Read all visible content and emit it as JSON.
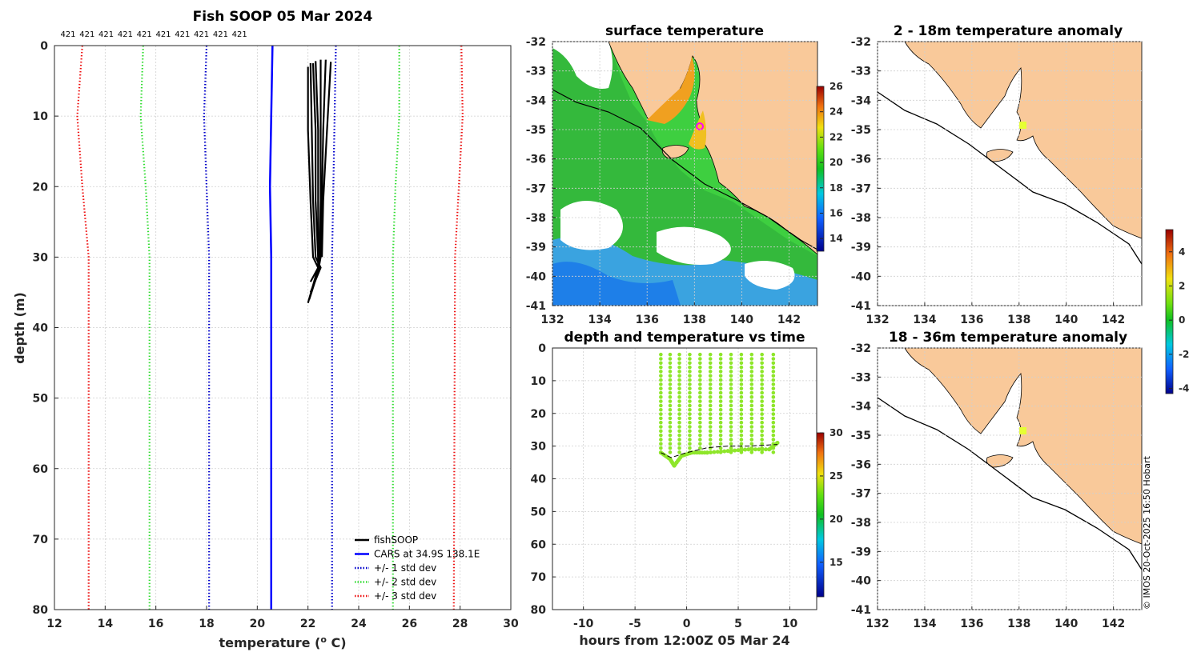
{
  "chart_data": [
    {
      "type": "line",
      "title": "Fish SOOP 05 Mar 2024",
      "xlabel": "temperature (",
      "xlabel_sup": "o",
      "xlabel_end": " C)",
      "ylabel": "depth (m)",
      "xlim": [
        12,
        30
      ],
      "ylim": [
        0,
        80
      ],
      "y_reversed": true,
      "xticks": [
        "12",
        "14",
        "16",
        "18",
        "20",
        "22",
        "24",
        "26",
        "28",
        "30"
      ],
      "yticks": [
        "0",
        "10",
        "20",
        "30",
        "40",
        "50",
        "60",
        "70",
        "80"
      ],
      "top_counts": [
        "421",
        "421",
        "421",
        "421",
        "421",
        "421",
        "421",
        "421",
        "421",
        "421"
      ],
      "legend": [
        {
          "label": "fishSOOP",
          "color": "#000000",
          "style": "solid"
        },
        {
          "label": "CARS at 34.9S 138.1E",
          "color": "#0000ff",
          "style": "solid"
        },
        {
          "label": "+/- 1 std dev",
          "color": "#0000cc",
          "style": "dotted"
        },
        {
          "label": "+/- 2 std dev",
          "color": "#33dd33",
          "style": "dotted"
        },
        {
          "label": "+/- 3 std dev",
          "color": "#ee1111",
          "style": "dotted"
        }
      ],
      "series": [
        {
          "name": "CARS",
          "color": "#0000ff",
          "style": "solid",
          "points": [
            [
              20.6,
              0
            ],
            [
              20.55,
              10
            ],
            [
              20.5,
              20
            ],
            [
              20.55,
              30
            ],
            [
              20.55,
              80
            ]
          ]
        },
        {
          "name": "-1 std",
          "color": "#0000cc",
          "style": "dotted",
          "points": [
            [
              18.0,
              0
            ],
            [
              17.9,
              10
            ],
            [
              18.0,
              20
            ],
            [
              18.1,
              30
            ],
            [
              18.1,
              80
            ]
          ]
        },
        {
          "name": "+1 std",
          "color": "#0000cc",
          "style": "dotted",
          "points": [
            [
              23.1,
              0
            ],
            [
              23.05,
              10
            ],
            [
              23.0,
              20
            ],
            [
              22.95,
              30
            ],
            [
              22.95,
              80
            ]
          ]
        },
        {
          "name": "-2 std",
          "color": "#33dd33",
          "style": "dotted",
          "points": [
            [
              15.5,
              0
            ],
            [
              15.4,
              10
            ],
            [
              15.6,
              20
            ],
            [
              15.75,
              30
            ],
            [
              15.75,
              80
            ]
          ]
        },
        {
          "name": "+2 std",
          "color": "#33dd33",
          "style": "dotted",
          "points": [
            [
              25.6,
              0
            ],
            [
              25.6,
              10
            ],
            [
              25.45,
              20
            ],
            [
              25.35,
              30
            ],
            [
              25.35,
              80
            ]
          ]
        },
        {
          "name": "-3 std",
          "color": "#ee1111",
          "style": "dotted",
          "points": [
            [
              13.1,
              0
            ],
            [
              12.9,
              10
            ],
            [
              13.1,
              20
            ],
            [
              13.35,
              30
            ],
            [
              13.35,
              80
            ]
          ]
        },
        {
          "name": "+3 std",
          "color": "#ee1111",
          "style": "dotted",
          "points": [
            [
              28.05,
              0
            ],
            [
              28.1,
              10
            ],
            [
              27.95,
              20
            ],
            [
              27.8,
              30
            ],
            [
              27.75,
              80
            ]
          ]
        }
      ],
      "profiles": [
        {
          "name": "fishSOOP cast",
          "points": [
            [
              22.0,
              3
            ],
            [
              22.0,
              12
            ],
            [
              22.1,
              22
            ],
            [
              22.2,
              30
            ],
            [
              22.4,
              31.5
            ],
            [
              22.1,
              33.5
            ]
          ]
        },
        {
          "name": "fishSOOP cast",
          "points": [
            [
              22.1,
              2.5
            ],
            [
              22.15,
              12
            ],
            [
              22.2,
              22
            ],
            [
              22.3,
              30
            ],
            [
              22.5,
              31.5
            ],
            [
              22.1,
              35
            ]
          ]
        },
        {
          "name": "fishSOOP cast",
          "points": [
            [
              22.2,
              2.5
            ],
            [
              22.3,
              12
            ],
            [
              22.3,
              22
            ],
            [
              22.4,
              30
            ],
            [
              22.45,
              31.5
            ],
            [
              22.05,
              36
            ]
          ]
        },
        {
          "name": "fishSOOP cast",
          "points": [
            [
              22.3,
              2.2
            ],
            [
              22.4,
              12
            ],
            [
              22.4,
              22
            ],
            [
              22.4,
              30
            ],
            [
              22.4,
              31.5
            ],
            [
              22.0,
              36.5
            ]
          ]
        },
        {
          "name": "fishSOOP cast",
          "points": [
            [
              22.5,
              2.0
            ],
            [
              22.5,
              12
            ],
            [
              22.5,
              22
            ],
            [
              22.45,
              30
            ],
            [
              22.4,
              31
            ]
          ]
        },
        {
          "name": "fishSOOP cast",
          "points": [
            [
              22.7,
              2.0
            ],
            [
              22.6,
              12
            ],
            [
              22.55,
              22
            ],
            [
              22.5,
              30
            ],
            [
              22.45,
              31
            ]
          ]
        },
        {
          "name": "fishSOOP cast",
          "points": [
            [
              22.9,
              2.3
            ],
            [
              22.75,
              12
            ],
            [
              22.6,
              22
            ],
            [
              22.55,
              30
            ]
          ]
        }
      ]
    },
    {
      "type": "heatmap",
      "title": "surface temperature",
      "xlim": [
        132,
        143.2
      ],
      "ylim": [
        -41,
        -32
      ],
      "xticks": [
        "132",
        "134",
        "136",
        "138",
        "140",
        "142"
      ],
      "yticks": [
        "-32",
        "-33",
        "-34",
        "-35",
        "-36",
        "-37",
        "-38",
        "-39",
        "-40",
        "-41"
      ],
      "colorbar": {
        "min": 13,
        "max": 26,
        "ticks": [
          "26",
          "24",
          "22",
          "20",
          "18",
          "16",
          "14"
        ]
      },
      "marker": {
        "lon": 138.2,
        "lat": -34.9
      }
    },
    {
      "type": "scatter",
      "title": "depth and temperature vs time",
      "xlabel": "hours from 12:00Z 05 Mar 24",
      "xlim": [
        -13,
        12.6
      ],
      "ylim": [
        0,
        80
      ],
      "y_reversed": true,
      "xticks": [
        "-10",
        "-5",
        "0",
        "5",
        "10"
      ],
      "yticks": [
        "0",
        "10",
        "20",
        "30",
        "40",
        "50",
        "60",
        "70",
        "80"
      ],
      "colorbar": {
        "min": 11,
        "max": 30,
        "ticks": [
          "30",
          "25",
          "20",
          "15"
        ]
      },
      "dive_times": [
        -2.5,
        -1.6,
        -0.7,
        0.3,
        1.3,
        2.3,
        3.3,
        4.3,
        5.3,
        6.3,
        7.3,
        8.4
      ],
      "dive_top_depth": 2,
      "dive_bottom_depth": 32,
      "seabed_depth": [
        [
          -2.5,
          32
        ],
        [
          -1.6,
          34
        ],
        [
          -1.2,
          36
        ],
        [
          -0.5,
          33
        ],
        [
          0.5,
          32
        ],
        [
          2,
          32
        ],
        [
          4,
          31.5
        ],
        [
          6,
          31
        ],
        [
          8,
          31
        ],
        [
          8.8,
          29
        ]
      ],
      "bathy_line": [
        [
          -2.5,
          32
        ],
        [
          -1.5,
          33.5
        ],
        [
          0,
          32
        ],
        [
          2,
          30.5
        ],
        [
          4,
          30
        ],
        [
          6,
          30
        ],
        [
          8.8,
          29.5
        ]
      ],
      "point_color": "#8ee62a"
    },
    {
      "type": "heatmap",
      "title": "2 - 18m temperature anomaly",
      "xlim": [
        132,
        143.2
      ],
      "ylim": [
        -41,
        -32
      ],
      "xticks": [
        "132",
        "134",
        "136",
        "138",
        "140",
        "142"
      ],
      "yticks": [
        "-32",
        "-33",
        "-34",
        "-35",
        "-36",
        "-37",
        "-38",
        "-39",
        "-40",
        "-41"
      ],
      "colorbar": {
        "min": -4.3,
        "max": 5.3,
        "ticks": [
          "4",
          "2",
          "0",
          "-2",
          "-4"
        ]
      },
      "marker": {
        "lon": 138.1,
        "lat": -34.9
      }
    },
    {
      "type": "heatmap",
      "title": "18 - 36m temperature anomaly",
      "xlim": [
        132,
        143.2
      ],
      "ylim": [
        -41,
        -32
      ],
      "xticks": [
        "132",
        "134",
        "136",
        "138",
        "140",
        "142"
      ],
      "yticks": [
        "-32",
        "-33",
        "-34",
        "-35",
        "-36",
        "-37",
        "-38",
        "-39",
        "-40",
        "-41"
      ],
      "marker": {
        "lon": 138.1,
        "lat": -34.9
      }
    }
  ],
  "copyright": "© IMOS 20-Oct-2025 16:50 Hobart",
  "colors": {
    "land": "#f9c99a",
    "ocean_green": "#2ec93a",
    "axis": "#262626"
  }
}
